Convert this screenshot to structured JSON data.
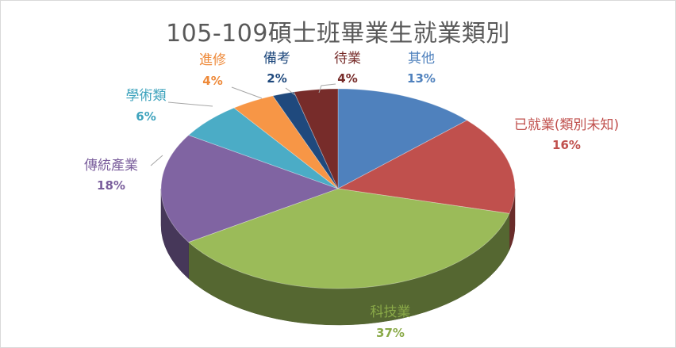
{
  "chart_data": {
    "type": "pie",
    "title": "105-109碩士班畢業生就業類別",
    "legend": "none",
    "slices": [
      {
        "name": "其他",
        "value": 13,
        "percent_label": "13%",
        "color": "#4f81bd",
        "label_color": "#4f81bd"
      },
      {
        "name": "已就業(類別未知)",
        "value": 16,
        "percent_label": "16%",
        "color": "#c0504d",
        "label_color": "#c0504d"
      },
      {
        "name": "科技業",
        "value": 37,
        "percent_label": "37%",
        "color": "#9bbb59",
        "label_color": "#8aaa48"
      },
      {
        "name": "傳統產業",
        "value": 18,
        "percent_label": "18%",
        "color": "#8064a2",
        "label_color": "#7a5e9c"
      },
      {
        "name": "學術類",
        "value": 6,
        "percent_label": "6%",
        "color": "#4bacc6",
        "label_color": "#3ea3bd"
      },
      {
        "name": "進修",
        "value": 4,
        "percent_label": "4%",
        "color": "#f79646",
        "label_color": "#ee8a3a"
      },
      {
        "name": "備考",
        "value": 2,
        "percent_label": "2%",
        "color": "#1f497d",
        "label_color": "#1f497d"
      },
      {
        "name": "待業",
        "value": 4,
        "percent_label": "4%",
        "color": "#772c2a",
        "label_color": "#772c2a"
      }
    ]
  }
}
